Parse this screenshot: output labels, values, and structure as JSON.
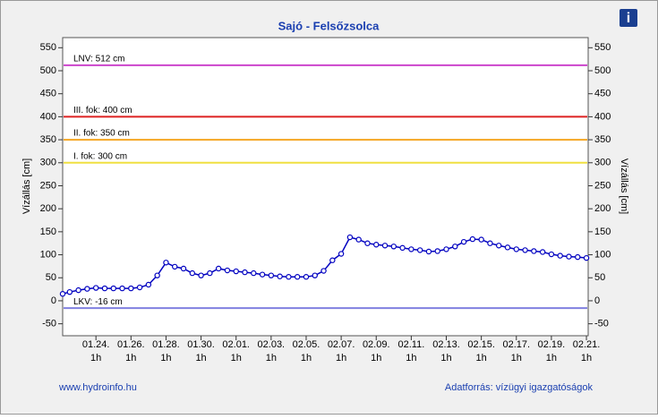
{
  "chart_data": {
    "type": "line",
    "title": "Sajó - Felsőzsolca",
    "y_label": "Vízállás [cm]",
    "y2_label": "Vízállás [cm]",
    "footer_left": "www.hydroinfo.hu",
    "footer_right": "Adatforrás: vízügyi igazgatóságok",
    "info_icon": "i",
    "xlim": [
      22.1,
      52.1
    ],
    "xticks": [
      {
        "value": 24,
        "label": "01.24."
      },
      {
        "value": 26,
        "label": "01.26."
      },
      {
        "value": 28,
        "label": "01.28."
      },
      {
        "value": 30,
        "label": "01.30."
      },
      {
        "value": 32,
        "label": "02.01."
      },
      {
        "value": 34,
        "label": "02.03."
      },
      {
        "value": 36,
        "label": "02.05."
      },
      {
        "value": 38,
        "label": "02.07."
      },
      {
        "value": 40,
        "label": "02.09."
      },
      {
        "value": 42,
        "label": "02.11."
      },
      {
        "value": 44,
        "label": "02.13."
      },
      {
        "value": 46,
        "label": "02.15."
      },
      {
        "value": 48,
        "label": "02.17."
      },
      {
        "value": 50,
        "label": "02.19."
      },
      {
        "value": 52,
        "label": "02.21."
      }
    ],
    "xtick_hour": "1h",
    "ylim": [
      -76,
      572
    ],
    "yticks": [
      -50,
      0,
      50,
      100,
      150,
      200,
      250,
      300,
      350,
      400,
      450,
      500,
      550
    ],
    "grid": false,
    "thresholds": [
      {
        "label": "LNV: 512 cm",
        "value": 512,
        "color": "#cc44cc"
      },
      {
        "label": "III. fok: 400 cm",
        "value": 400,
        "color": "#dd2222"
      },
      {
        "label": "II. fok: 350 cm",
        "value": 350,
        "color": "#f5a623"
      },
      {
        "label": "I. fok: 300 cm",
        "value": 300,
        "color": "#f0e040"
      },
      {
        "label": "LKV: -16 cm",
        "value": -16,
        "color": "#8080e0"
      }
    ],
    "series": [
      {
        "color": "#0000c0",
        "x": [
          22.1,
          22.5,
          23,
          23.5,
          24,
          24.5,
          25,
          25.5,
          26,
          26.5,
          27,
          27.5,
          28,
          28.5,
          29,
          29.5,
          30,
          30.5,
          31,
          31.5,
          32,
          32.5,
          33,
          33.5,
          34,
          34.5,
          35,
          35.5,
          36,
          36.5,
          37,
          37.5,
          38,
          38.5,
          39,
          39.5,
          40,
          40.5,
          41,
          41.5,
          42,
          42.5,
          43,
          43.5,
          44,
          44.5,
          45,
          45.5,
          46,
          46.5,
          47,
          47.5,
          48,
          48.5,
          49,
          49.5,
          50,
          50.5,
          51,
          51.5,
          52
        ],
        "values": [
          15,
          19,
          23,
          26,
          28,
          27,
          27,
          27,
          27,
          29,
          35,
          55,
          83,
          74,
          70,
          60,
          55,
          60,
          70,
          66,
          64,
          62,
          60,
          57,
          55,
          53,
          52,
          52,
          52,
          55,
          65,
          88,
          102,
          138,
          133,
          125,
          122,
          120,
          118,
          115,
          112,
          110,
          107,
          108,
          112,
          118,
          128,
          134,
          133,
          125,
          120,
          116,
          112,
          110,
          108,
          106,
          101,
          98,
          96,
          95,
          93
        ]
      }
    ]
  }
}
